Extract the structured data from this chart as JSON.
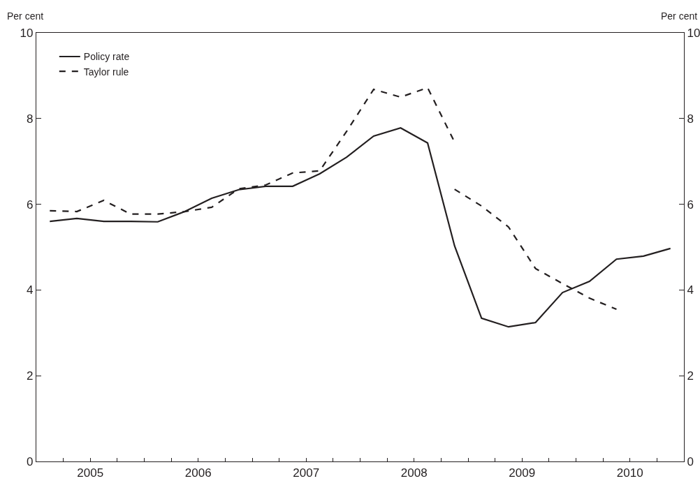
{
  "chart_data": {
    "type": "line",
    "ylabel": "Per cent",
    "y2label": "Per cent",
    "x": [
      2005.125,
      2005.375,
      2005.625,
      2005.875,
      2006.125,
      2006.375,
      2006.625,
      2006.875,
      2007.125,
      2007.375,
      2007.625,
      2007.875,
      2008.125,
      2008.375,
      2008.625,
      2008.875,
      2009.125,
      2009.375,
      2009.625,
      2009.875,
      2010.125,
      2010.375,
      2010.625,
      2010.875
    ],
    "series": [
      {
        "name": "Policy rate",
        "color": "#231f20",
        "line_style": "solid",
        "values": [
          5.6,
          5.67,
          5.6,
          5.6,
          5.59,
          5.83,
          6.14,
          6.34,
          6.42,
          6.42,
          6.71,
          7.1,
          7.59,
          7.78,
          7.43,
          5.03,
          3.34,
          3.14,
          3.24,
          3.94,
          4.2,
          4.72,
          4.79,
          4.97
        ]
      },
      {
        "name": "Taylor rule",
        "color": "#231f20",
        "line_style": "dashed",
        "x": [
          2005.125,
          2005.375,
          2005.625,
          2005.875,
          2006.125,
          2006.375,
          2006.625,
          2006.875,
          2007.125,
          2007.375,
          2007.625,
          2007.875,
          2008.125,
          2008.375,
          2008.625,
          2008.875,
          null,
          2008.875,
          2009.125,
          2009.375,
          2009.625,
          2009.875,
          2010.125,
          2010.375
        ],
        "values": [
          5.85,
          5.83,
          6.09,
          5.77,
          5.77,
          5.83,
          5.93,
          6.36,
          6.45,
          6.73,
          6.78,
          7.7,
          8.68,
          8.5,
          8.72,
          7.45,
          null,
          6.35,
          5.96,
          5.47,
          4.5,
          4.15,
          3.81,
          3.55
        ]
      }
    ],
    "xlim": [
      2005,
      2011
    ],
    "xticks": [
      {
        "value": 2005,
        "label": null
      },
      {
        "value": 2005.25,
        "label": null
      },
      {
        "value": 2005.5,
        "label": "2005"
      },
      {
        "value": 2005.75,
        "label": null
      },
      {
        "value": 2006,
        "label": null
      },
      {
        "value": 2006.25,
        "label": null
      },
      {
        "value": 2006.5,
        "label": "2006"
      },
      {
        "value": 2006.75,
        "label": null
      },
      {
        "value": 2007,
        "label": null
      },
      {
        "value": 2007.25,
        "label": null
      },
      {
        "value": 2007.5,
        "label": "2007"
      },
      {
        "value": 2007.75,
        "label": null
      },
      {
        "value": 2008,
        "label": null
      },
      {
        "value": 2008.25,
        "label": null
      },
      {
        "value": 2008.5,
        "label": "2008"
      },
      {
        "value": 2008.75,
        "label": null
      },
      {
        "value": 2009,
        "label": null
      },
      {
        "value": 2009.25,
        "label": null
      },
      {
        "value": 2009.5,
        "label": "2009"
      },
      {
        "value": 2009.75,
        "label": null
      },
      {
        "value": 2010,
        "label": null
      },
      {
        "value": 2010.25,
        "label": null
      },
      {
        "value": 2010.5,
        "label": "2010"
      },
      {
        "value": 2010.75,
        "label": null
      },
      {
        "value": 2011,
        "label": null
      }
    ],
    "ylim": [
      0,
      10
    ],
    "yticks": [
      0,
      2,
      4,
      6,
      8,
      10
    ],
    "y2lim": [
      0,
      10
    ],
    "y2ticks": [
      0,
      2,
      4,
      6,
      8,
      10
    ],
    "grid": false,
    "legend": "top left",
    "marker": "none"
  }
}
